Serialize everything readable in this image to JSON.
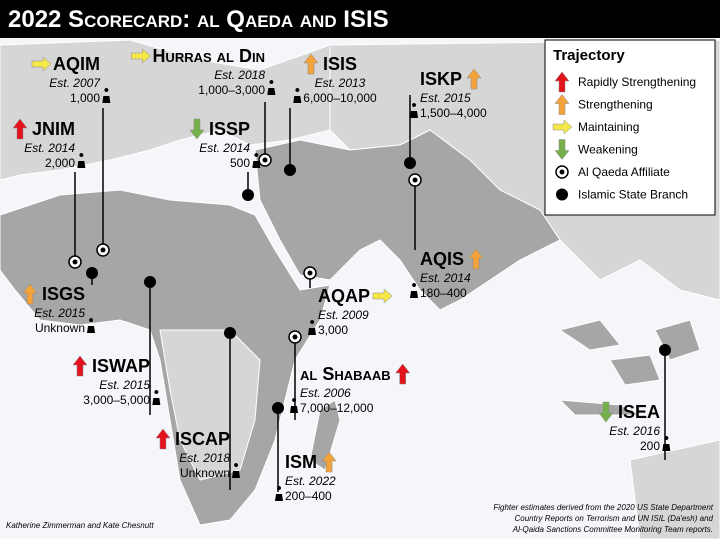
{
  "header": {
    "title": "2022 Scorecard: al Qaeda and ISIS"
  },
  "legend": {
    "title": "Trajectory",
    "items": [
      {
        "label": "Rapidly Strengthening",
        "color": "#e3121b",
        "arrow": "up"
      },
      {
        "label": "Strengthening",
        "color": "#f4a23a",
        "arrow": "up"
      },
      {
        "label": "Maintaining",
        "color": "#f7e84a",
        "arrow": "right"
      },
      {
        "label": "Weakening",
        "color": "#76b04a",
        "arrow": "down"
      },
      {
        "label": "Al Qaeda Affiliate",
        "marker": "al-qaeda"
      },
      {
        "label": "Islamic State Branch",
        "marker": "islamic-state"
      }
    ]
  },
  "groups": [
    {
      "name": "AQIM",
      "est": "Est. 2007",
      "fighters": "1,000",
      "color": "#f7e84a",
      "arrow": "right",
      "marker": "al-qaeda"
    },
    {
      "name": "Hurras al Din",
      "est": "Est. 2018",
      "fighters": "1,000–3,000",
      "color": "#f7e84a",
      "arrow": "right",
      "marker": "al-qaeda"
    },
    {
      "name": "ISIS",
      "est": "Est. 2013",
      "fighters": "6,000–10,000",
      "color": "#f4a23a",
      "arrow": "up",
      "marker": "islamic-state"
    },
    {
      "name": "ISKP",
      "est": "Est. 2015",
      "fighters": "1,500–4,000",
      "color": "#f4a23a",
      "arrow": "up",
      "marker": "islamic-state"
    },
    {
      "name": "JNIM",
      "est": "Est. 2014",
      "fighters": "2,000",
      "color": "#e3121b",
      "arrow": "up",
      "marker": "al-qaeda"
    },
    {
      "name": "ISSP",
      "est": "Est. 2014",
      "fighters": "500",
      "color": "#76b04a",
      "arrow": "down",
      "marker": "islamic-state"
    },
    {
      "name": "AQIS",
      "est": "Est. 2014",
      "fighters": "180–400",
      "color": "#f4a23a",
      "arrow": "up",
      "marker": "al-qaeda"
    },
    {
      "name": "ISGS",
      "est": "Est. 2015",
      "fighters": "Unknown",
      "color": "#f4a23a",
      "arrow": "up",
      "marker": "islamic-state"
    },
    {
      "name": "AQAP",
      "est": "Est. 2009",
      "fighters": "3,000",
      "color": "#f7e84a",
      "arrow": "right",
      "marker": "al-qaeda"
    },
    {
      "name": "ISWAP",
      "est": "Est. 2015",
      "fighters": "3,000–5,000",
      "color": "#e3121b",
      "arrow": "up",
      "marker": "islamic-state"
    },
    {
      "name": "al Shabaab",
      "est": "Est. 2006",
      "fighters": "7,000–12,000",
      "color": "#e3121b",
      "arrow": "up",
      "marker": "al-qaeda"
    },
    {
      "name": "ISCAP",
      "est": "Est. 2018",
      "fighters": "Unknown",
      "color": "#e3121b",
      "arrow": "up",
      "marker": "islamic-state"
    },
    {
      "name": "ISM",
      "est": "Est. 2022",
      "fighters": "200–400",
      "color": "#f4a23a",
      "arrow": "up",
      "marker": "islamic-state"
    },
    {
      "name": "ISEA",
      "est": "Est. 2016",
      "fighters": "200",
      "color": "#76b04a",
      "arrow": "down",
      "marker": "islamic-state"
    }
  ],
  "footer": {
    "authors": "Katherine Zimmerman and Kate Chesnutt",
    "source": [
      "Fighter estimates derived from the 2020 US State Department",
      "Country Reports on Terrorism and UN ISIL (Da'esh) and",
      "Al-Qaida Sanctions Committee Monitoring Team reports."
    ]
  }
}
